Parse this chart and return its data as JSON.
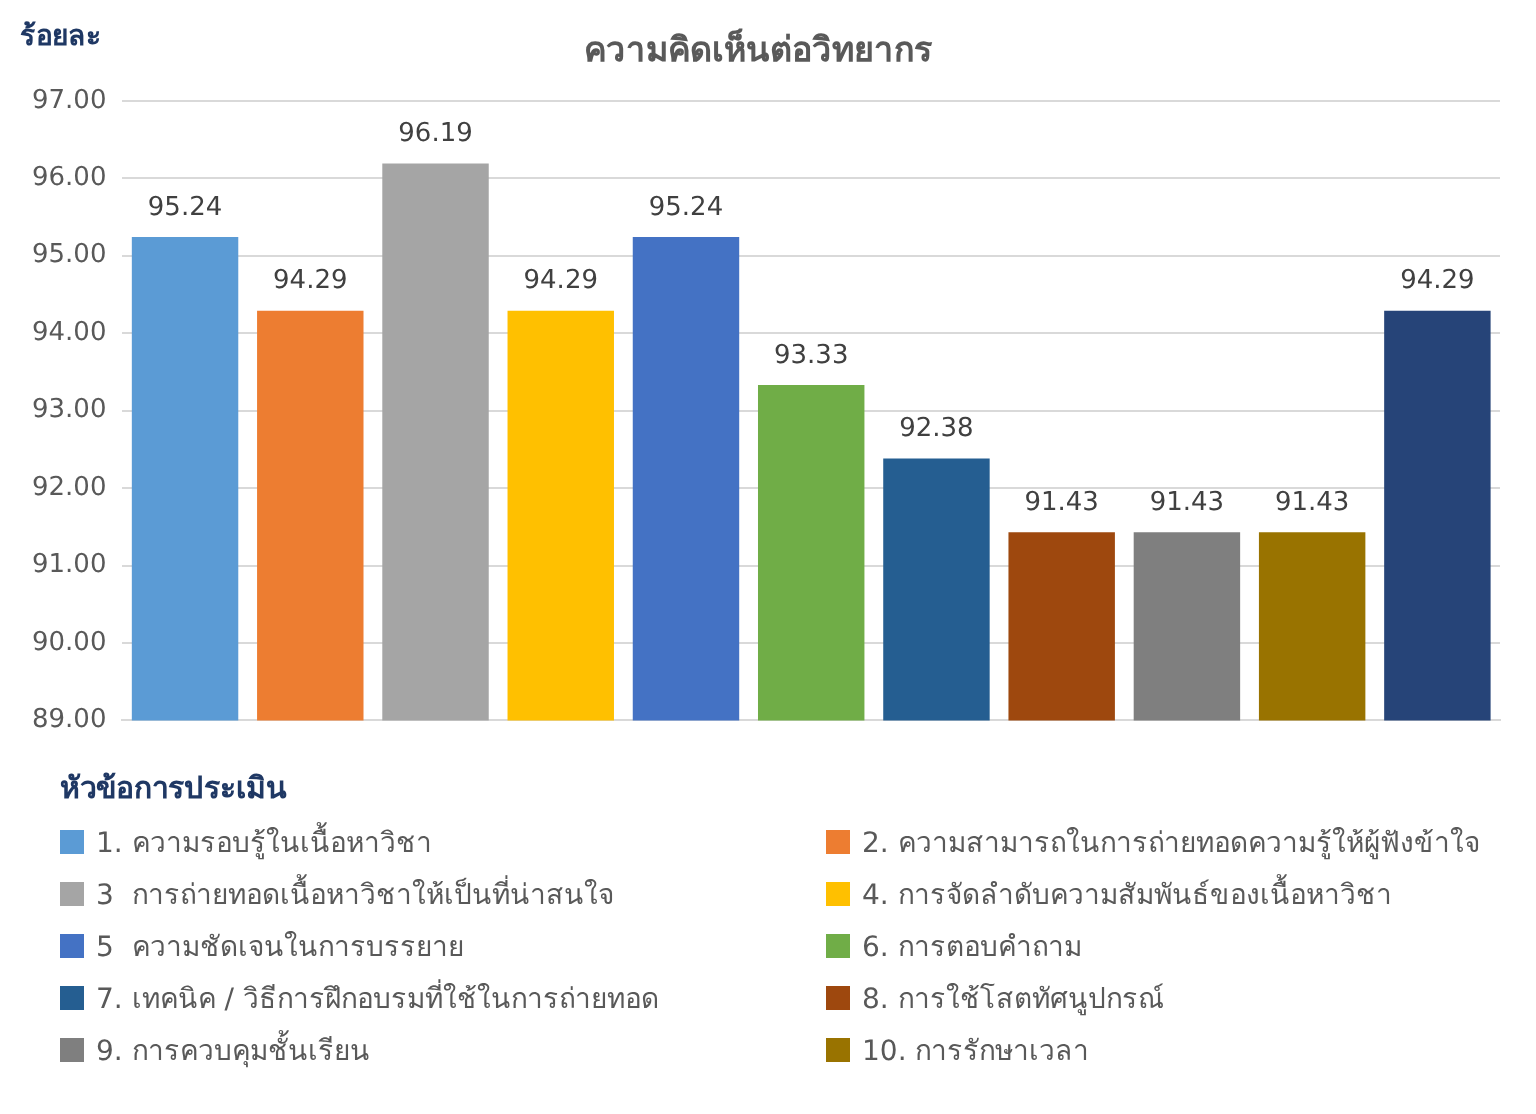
{
  "chart_data": {
    "type": "bar",
    "title": "ความคิดเห็นต่อวิทยากร",
    "ylabel": "ร้อยละ",
    "legend_title": "หัวข้อการประเมิน",
    "categories": [
      null,
      null,
      null,
      null,
      null,
      null,
      null,
      null,
      null,
      null,
      null
    ],
    "series": [
      {
        "name": "1. ความรอบรู้ในเนื้อหาวิชา",
        "color": "#5b9bd5",
        "values": [
          95.24,
          null,
          null,
          null,
          null,
          null,
          null,
          null,
          null,
          null,
          null
        ]
      },
      {
        "name": "2. ความสามารถในการถ่ายทอดความรู้ให้ผู้ฟังข้าใจ",
        "color": "#ed7d31",
        "values": [
          null,
          94.29,
          null,
          null,
          null,
          null,
          null,
          null,
          null,
          null,
          null
        ]
      },
      {
        "name": "3  การถ่ายทอดเนื้อหาวิชาให้เป็นที่น่าสนใจ",
        "color": "#a5a5a5",
        "values": [
          null,
          null,
          96.19,
          null,
          null,
          null,
          null,
          null,
          null,
          null,
          null
        ]
      },
      {
        "name": "4. การจัดลำดับความสัมพันธ์ของเนื้อหาวิชา",
        "color": "#ffc000",
        "values": [
          null,
          null,
          null,
          94.29,
          null,
          null,
          null,
          null,
          null,
          null,
          null
        ]
      },
      {
        "name": "5  ความชัดเจนในการบรรยาย",
        "color": "#4472c4",
        "values": [
          null,
          null,
          null,
          null,
          95.24,
          null,
          null,
          null,
          null,
          null,
          null
        ]
      },
      {
        "name": "6. การตอบคำถาม",
        "color": "#70ad47",
        "values": [
          null,
          null,
          null,
          null,
          null,
          93.33,
          null,
          null,
          null,
          null,
          null
        ]
      },
      {
        "name": "7. เทคนิค / วิธีการฝึกอบรมที่ใช้ในการถ่ายทอด",
        "color": "#255e91",
        "values": [
          null,
          null,
          null,
          null,
          null,
          null,
          92.38,
          null,
          null,
          null,
          null
        ]
      },
      {
        "name": "8. การใช้โสตทัศนูปกรณ์",
        "color": "#9e480e",
        "values": [
          null,
          null,
          null,
          null,
          null,
          null,
          null,
          91.43,
          null,
          null,
          null
        ]
      },
      {
        "name": "9. การควบคุมชั้นเรียน",
        "color": "#7f7f7f",
        "values": [
          null,
          null,
          null,
          null,
          null,
          null,
          null,
          null,
          91.43,
          null,
          null
        ]
      },
      {
        "name": "10. การรักษาเวลา",
        "color": "#997300",
        "values": [
          null,
          null,
          null,
          null,
          null,
          null,
          null,
          null,
          null,
          91.43,
          null
        ]
      },
      {
        "color": "#264478",
        "values": [
          null,
          null,
          null,
          null,
          null,
          null,
          null,
          null,
          null,
          null,
          94.29
        ]
      }
    ],
    "ylim": [
      89,
      97
    ],
    "yticks": [
      {
        "value": 89,
        "label": "89.00"
      },
      {
        "value": 90,
        "label": "90.00"
      },
      {
        "value": 91,
        "label": "91.00"
      },
      {
        "value": 92,
        "label": "92.00"
      },
      {
        "value": 93,
        "label": "93.00"
      },
      {
        "value": 94,
        "label": "94.00"
      },
      {
        "value": 95,
        "label": "95.00"
      },
      {
        "value": 96,
        "label": "96.00"
      },
      {
        "value": 97,
        "label": "97.00"
      }
    ],
    "grid": "y",
    "legend": "bottom",
    "data_labels": true,
    "tick_labels": "y"
  }
}
